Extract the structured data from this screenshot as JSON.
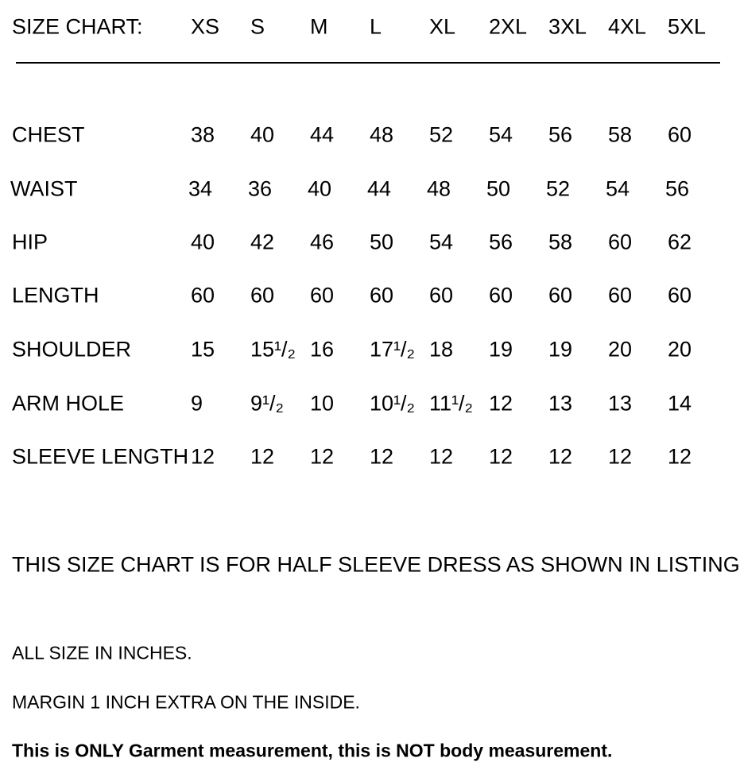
{
  "header": {
    "label": "SIZE CHART:",
    "sizes": [
      "XS",
      "S",
      "M",
      "L",
      "XL",
      "2XL",
      "3XL",
      "4XL",
      "5XL"
    ]
  },
  "rows": [
    {
      "label": "CHEST",
      "values": [
        "38",
        "40",
        "44",
        "48",
        "52",
        "54",
        "56",
        "58",
        "60"
      ]
    },
    {
      "label": "WAIST",
      "values": [
        "34",
        "36",
        "40",
        "44",
        "48",
        "50",
        "52",
        "54",
        "56"
      ]
    },
    {
      "label": "HIP",
      "values": [
        "40",
        "42",
        "46",
        "50",
        "54",
        "56",
        "58",
        "60",
        "62"
      ]
    },
    {
      "label": "LENGTH",
      "values": [
        "60",
        "60",
        "60",
        "60",
        "60",
        "60",
        "60",
        "60",
        "60"
      ]
    },
    {
      "label": "SHOULDER",
      "values": [
        "15",
        "15¹/₂",
        "16",
        "17¹/₂",
        "18",
        "19",
        "19",
        "20",
        "20"
      ]
    },
    {
      "label": "ARM HOLE",
      "values": [
        "9",
        "9¹/₂",
        "10",
        "10¹/₂",
        "11¹/₂",
        "12",
        "13",
        "13",
        "14"
      ]
    },
    {
      "label": "SLEEVE LENGTH",
      "values": [
        "12",
        "12",
        "12",
        "12",
        "12",
        "12",
        "12",
        "12",
        "12"
      ]
    }
  ],
  "notes": {
    "listing": "THIS SIZE CHART IS FOR HALF SLEEVE DRESS AS SHOWN IN LISTING",
    "units": "ALL SIZE IN INCHES.",
    "margin": "MARGIN 1 INCH EXTRA ON THE INSIDE.",
    "disclaimer": "This is ONLY Garment measurement, this is NOT body measurement."
  }
}
